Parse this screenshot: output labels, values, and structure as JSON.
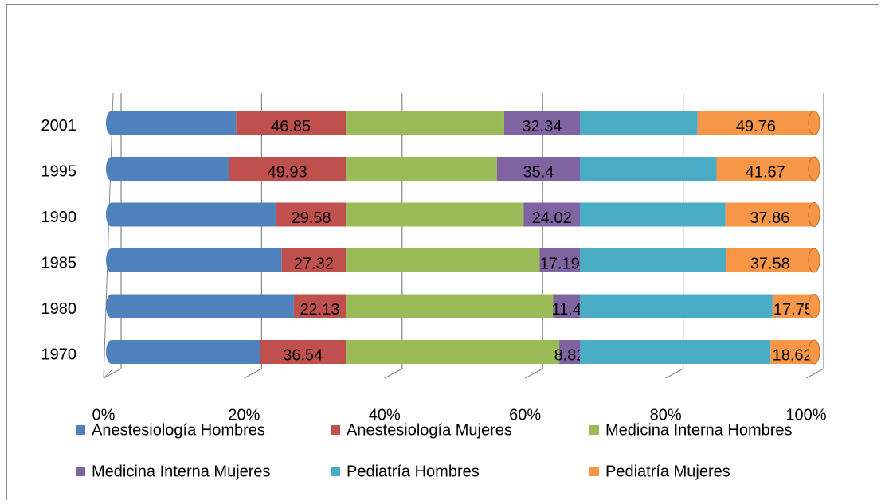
{
  "chart_data": {
    "type": "bar",
    "orientation": "horizontal",
    "stacked": "percent",
    "categories": [
      "1970",
      "1980",
      "1985",
      "1990",
      "1995",
      "2001"
    ],
    "series": [
      {
        "name": "Anestesiología Hombres",
        "color": "#4f81bd",
        "values": [
          63.46,
          77.87,
          72.68,
          70.42,
          50.07,
          53.15
        ]
      },
      {
        "name": "Anestesiología Mujeres",
        "color": "#c0504d",
        "values": [
          36.54,
          22.13,
          27.32,
          29.58,
          49.93,
          46.85
        ],
        "data_labels": true
      },
      {
        "name": "Medicina Interna Hombres",
        "color": "#9bbb59",
        "values": [
          91.18,
          88.6,
          82.81,
          75.98,
          64.6,
          67.66
        ]
      },
      {
        "name": "Medicina Interna Mujeres",
        "color": "#8064a2",
        "values": [
          8.82,
          11.4,
          17.19,
          24.02,
          35.4,
          32.34
        ],
        "data_labels": true
      },
      {
        "name": "Pediatría Hombres",
        "color": "#4bacc6",
        "values": [
          81.38,
          82.25,
          62.42,
          62.14,
          58.33,
          50.24
        ]
      },
      {
        "name": "Pediatría Mujeres",
        "color": "#f79646",
        "values": [
          18.62,
          17.75,
          37.58,
          37.86,
          41.67,
          49.76
        ],
        "data_labels": true
      }
    ],
    "xlim": [
      0,
      100
    ],
    "xticks": [
      {
        "value": 0,
        "label": "0%"
      },
      {
        "value": 20,
        "label": "20%"
      },
      {
        "value": 40,
        "label": "40%"
      },
      {
        "value": 60,
        "label": "60%"
      },
      {
        "value": 80,
        "label": "80%"
      },
      {
        "value": 100,
        "label": "100%"
      }
    ],
    "grid": true,
    "legend": "bottom"
  }
}
